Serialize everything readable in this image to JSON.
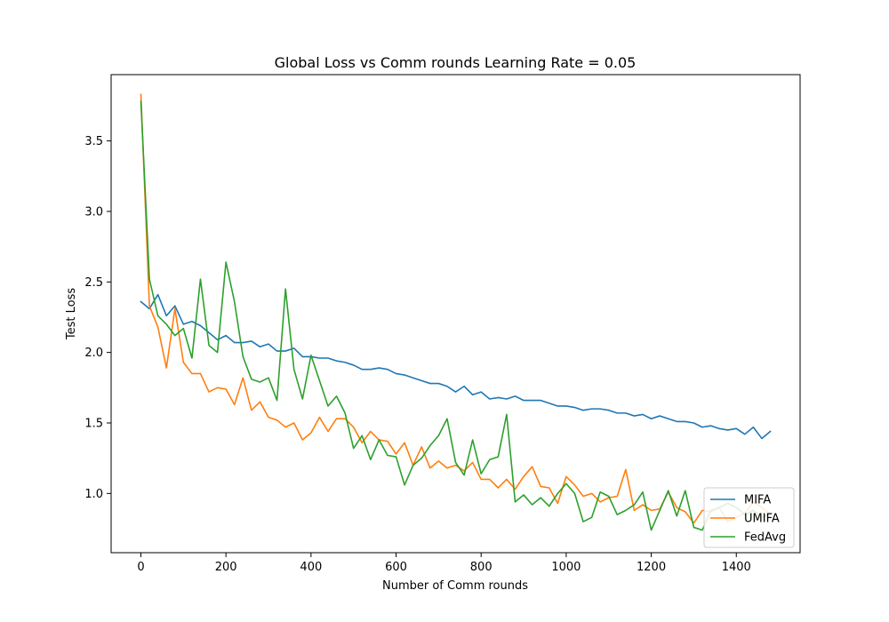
{
  "chart_data": {
    "type": "line",
    "title": "Global Loss vs Comm rounds Learning Rate = 0.05",
    "xlabel": "Number of Comm rounds",
    "ylabel": "Test Loss",
    "xlim": [
      -70,
      1550
    ],
    "ylim": [
      0.58,
      3.97
    ],
    "xticks": [
      0,
      200,
      400,
      600,
      800,
      1000,
      1200,
      1400
    ],
    "yticks": [
      1.0,
      1.5,
      2.0,
      2.5,
      3.0,
      3.5
    ],
    "ytick_labels": [
      "1.0",
      "1.5",
      "2.0",
      "2.5",
      "3.0",
      "3.5"
    ],
    "grid": false,
    "legend_position": "lower-right",
    "x": [
      0,
      20,
      40,
      60,
      80,
      100,
      120,
      140,
      160,
      180,
      200,
      220,
      240,
      260,
      280,
      300,
      320,
      340,
      360,
      380,
      400,
      420,
      440,
      460,
      480,
      500,
      520,
      540,
      560,
      580,
      600,
      620,
      640,
      660,
      680,
      700,
      720,
      740,
      760,
      780,
      800,
      820,
      840,
      860,
      880,
      900,
      920,
      940,
      960,
      980,
      1000,
      1020,
      1040,
      1060,
      1080,
      1100,
      1120,
      1140,
      1160,
      1180,
      1200,
      1220,
      1240,
      1260,
      1280,
      1300,
      1320,
      1340,
      1360,
      1380,
      1400,
      1420,
      1440,
      1460,
      1480
    ],
    "series": [
      {
        "name": "MIFA",
        "color": "#1f77b4",
        "values": [
          2.36,
          2.31,
          2.41,
          2.26,
          2.33,
          2.2,
          2.22,
          2.19,
          2.14,
          2.09,
          2.12,
          2.07,
          2.07,
          2.08,
          2.04,
          2.06,
          2.01,
          2.01,
          2.03,
          1.97,
          1.97,
          1.96,
          1.96,
          1.94,
          1.93,
          1.91,
          1.88,
          1.88,
          1.89,
          1.88,
          1.85,
          1.84,
          1.82,
          1.8,
          1.78,
          1.78,
          1.76,
          1.72,
          1.76,
          1.7,
          1.72,
          1.67,
          1.68,
          1.67,
          1.69,
          1.66,
          1.66,
          1.66,
          1.64,
          1.62,
          1.62,
          1.61,
          1.59,
          1.6,
          1.6,
          1.59,
          1.57,
          1.57,
          1.55,
          1.56,
          1.53,
          1.55,
          1.53,
          1.51,
          1.51,
          1.5,
          1.47,
          1.48,
          1.46,
          1.45,
          1.46,
          1.42,
          1.47,
          1.39,
          1.44
        ]
      },
      {
        "name": "UMIFA",
        "color": "#ff7f0e",
        "values": [
          3.83,
          2.33,
          2.18,
          1.89,
          2.31,
          1.93,
          1.85,
          1.85,
          1.72,
          1.75,
          1.74,
          1.63,
          1.82,
          1.59,
          1.65,
          1.54,
          1.52,
          1.47,
          1.5,
          1.38,
          1.43,
          1.54,
          1.44,
          1.53,
          1.53,
          1.47,
          1.36,
          1.44,
          1.38,
          1.37,
          1.28,
          1.36,
          1.2,
          1.33,
          1.18,
          1.23,
          1.18,
          1.2,
          1.16,
          1.22,
          1.1,
          1.1,
          1.04,
          1.1,
          1.03,
          1.12,
          1.19,
          1.05,
          1.04,
          0.93,
          1.12,
          1.06,
          0.98,
          1.0,
          0.94,
          0.97,
          0.98,
          1.17,
          0.88,
          0.92,
          0.88,
          0.89,
          1.01,
          0.9,
          0.87,
          0.79,
          0.88,
          0.87,
          0.9,
          0.8,
          0.83,
          0.86,
          0.94,
          0.9,
          0.85
        ]
      },
      {
        "name": "FedAvg",
        "color": "#2ca02c",
        "values": [
          3.78,
          2.52,
          2.26,
          2.2,
          2.12,
          2.17,
          1.96,
          2.52,
          2.05,
          2.0,
          2.64,
          2.36,
          1.97,
          1.81,
          1.79,
          1.82,
          1.66,
          2.45,
          1.88,
          1.67,
          1.98,
          1.8,
          1.62,
          1.69,
          1.57,
          1.32,
          1.41,
          1.24,
          1.38,
          1.27,
          1.26,
          1.06,
          1.2,
          1.25,
          1.34,
          1.41,
          1.53,
          1.22,
          1.13,
          1.38,
          1.14,
          1.24,
          1.26,
          1.56,
          0.94,
          0.99,
          0.92,
          0.97,
          0.91,
          1.0,
          1.07,
          1.0,
          0.8,
          0.83,
          1.01,
          0.98,
          0.85,
          0.88,
          0.92,
          1.01,
          0.74,
          0.88,
          1.02,
          0.84,
          1.02,
          0.76,
          0.74,
          0.88,
          0.9,
          0.93,
          0.9,
          0.85,
          0.88,
          0.83,
          0.86
        ]
      }
    ]
  }
}
